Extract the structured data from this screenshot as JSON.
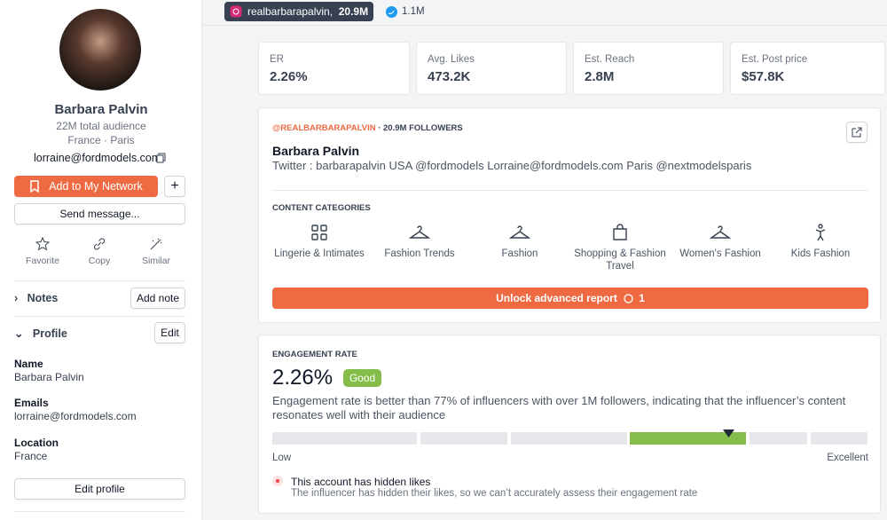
{
  "profile": {
    "name": "Barbara Palvin",
    "audience": "22M total audience",
    "location": "France · Paris",
    "email": "lorraine@fordmodels.com"
  },
  "actions": {
    "add": "Add to My Network",
    "send": "Send message...",
    "favorite": "Favorite",
    "copy": "Copy",
    "similar": "Similar"
  },
  "sections": {
    "notes": "Notes",
    "add_note": "Add note",
    "profile": "Profile",
    "edit": "Edit"
  },
  "fields": [
    {
      "label": "Name",
      "value": "Barbara Palvin"
    },
    {
      "label": "Emails",
      "value": "lorraine@fordmodels.com"
    },
    {
      "label": "Location",
      "value": "France"
    }
  ],
  "edit_profile": "Edit profile",
  "tabs": [
    {
      "label": "realbarbarapalvin,",
      "count": "20.9M"
    },
    {
      "count": "1.1M"
    }
  ],
  "stats": [
    {
      "label": "ER",
      "value": "2.26%"
    },
    {
      "label": "Avg. Likes",
      "value": "473.2K"
    },
    {
      "label": "Est. Reach",
      "value": "2.8M"
    },
    {
      "label": "Est. Post price",
      "value": "$57.8K"
    }
  ],
  "card": {
    "handle": "@REALBARBARAPALVIN",
    "followers": "· 20.9M FOLLOWERS",
    "name": "Barbara Palvin",
    "bio": "Twitter : barbarapalvin USA @fordmodels Lorraine@fordmodels.com Paris @nextmodelsparis"
  },
  "categories": {
    "title": "CONTENT CATEGORIES",
    "items": [
      "Lingerie & Intimates",
      "Fashion Trends",
      "Fashion",
      "Shopping & Fashion Travel",
      "Women's Fashion",
      "Kids Fashion"
    ]
  },
  "unlock": {
    "label": "Unlock advanced report",
    "count": "1"
  },
  "engagement": {
    "title": "ENGAGEMENT RATE",
    "value": "2.26%",
    "badge": "Good",
    "text": "Engagement rate is better than 77% of influencers with over 1M followers, indicating that the influencer’s content resonates well with their audience",
    "low": "Low",
    "high": "Excellent",
    "note_title": "This account has hidden likes",
    "note_text": "The influencer has hidden their likes, so we can’t accurately assess their engagement rate"
  }
}
